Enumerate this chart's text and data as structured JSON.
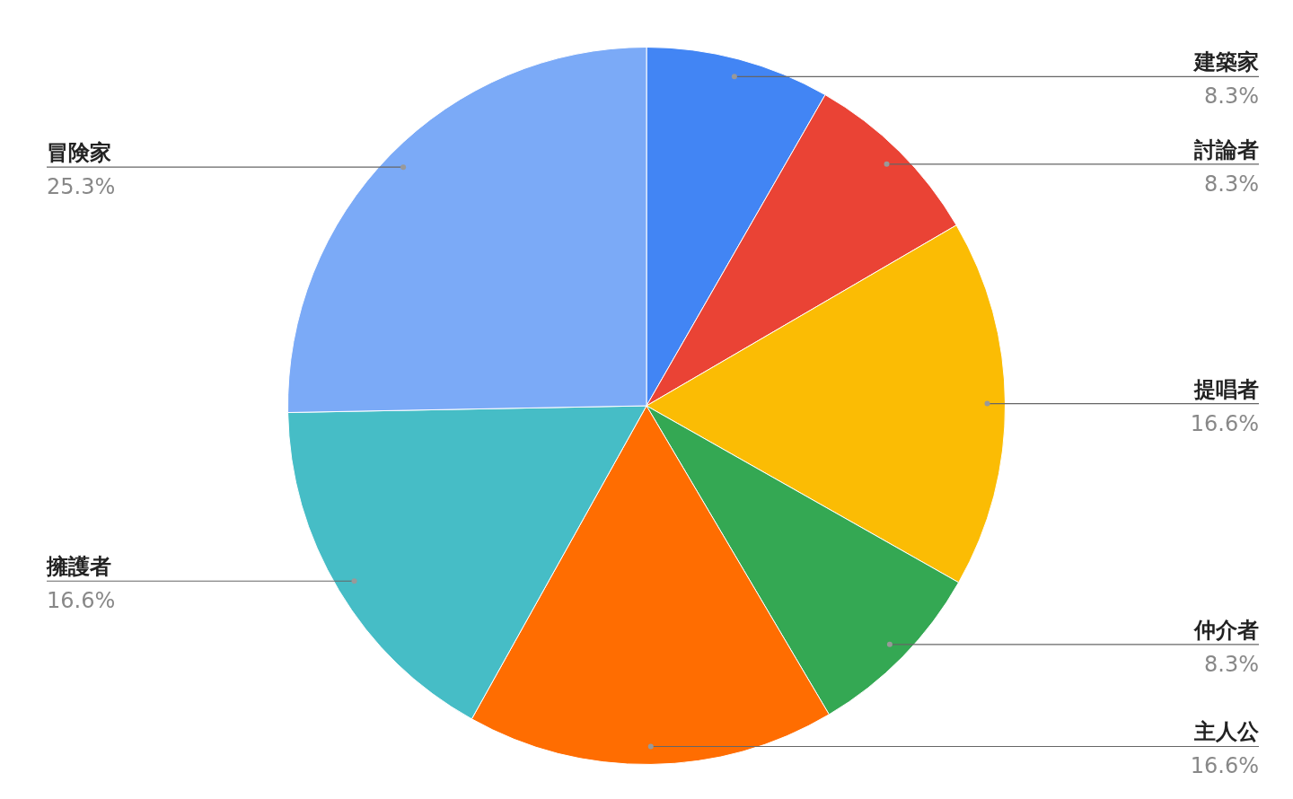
{
  "chart_data": {
    "type": "pie",
    "categories": [
      "建築家",
      "討論者",
      "提唱者",
      "仲介者",
      "主人公",
      "擁護者",
      "冒険家"
    ],
    "values": [
      8.3,
      8.3,
      16.6,
      8.3,
      16.6,
      16.6,
      25.3
    ],
    "value_labels": [
      "8.3%",
      "8.3%",
      "16.6%",
      "8.3%",
      "16.6%",
      "16.6%",
      "25.3%"
    ],
    "colors": [
      "#4285f4",
      "#ea4335",
      "#fbbc04",
      "#34a853",
      "#ff6d01",
      "#46bdc6",
      "#7baaf7"
    ],
    "legend": false
  }
}
